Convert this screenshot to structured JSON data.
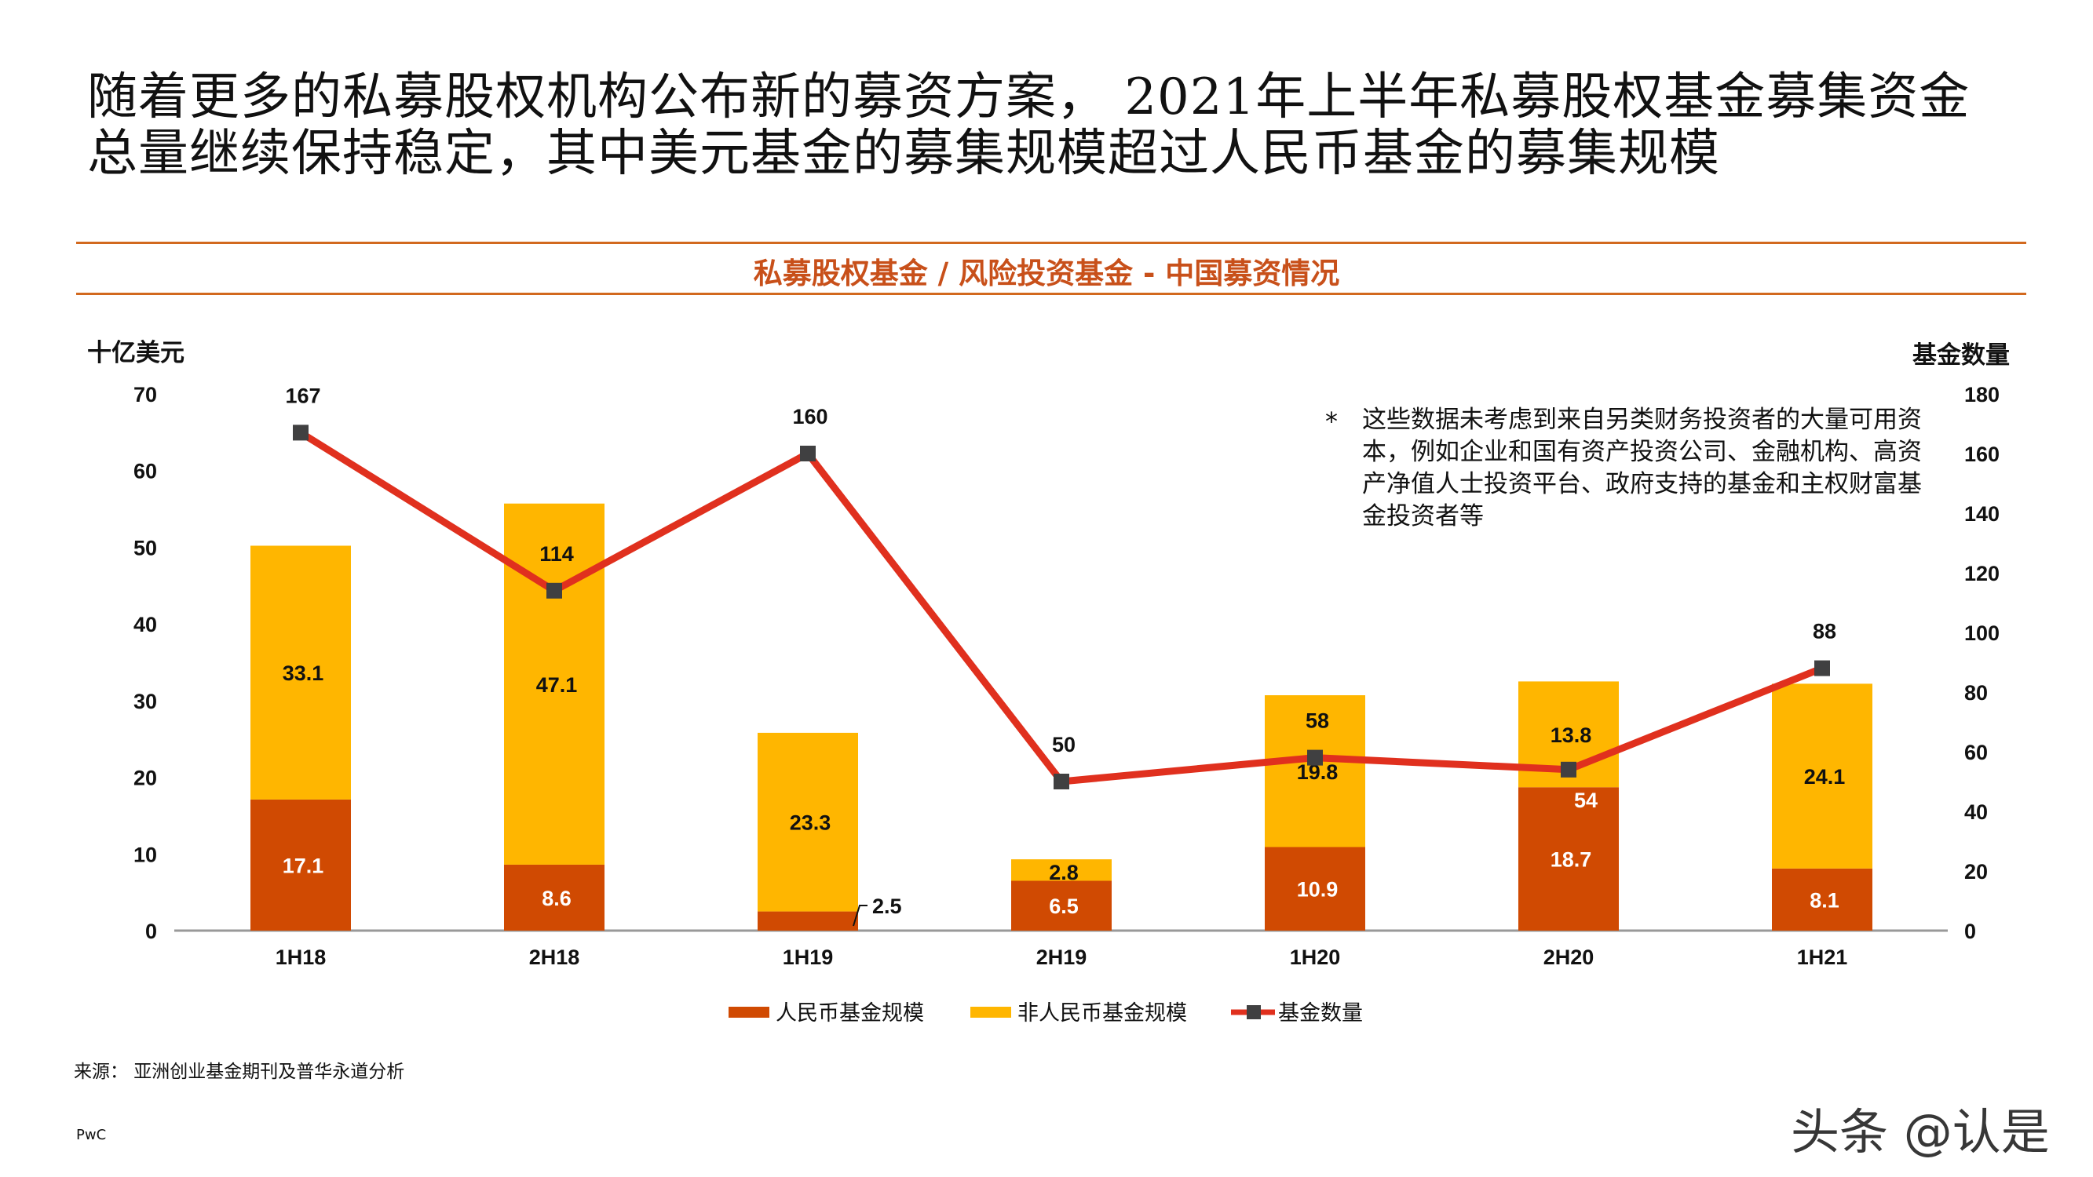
{
  "headline": [
    "随着更多的私募股权机构公布新的募资方案， 2021年上半年私募股权基金募集资金",
    "总量继续保持稳定，其中美元基金的募集规模超过人民币基金的募集规模"
  ],
  "note": {
    "marker": "*",
    "text": "这些数据未考虑到来自另类财务投资者的大量可用资本，例如企业和国有资产投资公司、金融机构、高资产净值人士投资平台、政府支持的基金和主权财富基金投资者等"
  },
  "source": "来源： 亚洲创业基金期刊及普华永道分析",
  "brand": "PwC",
  "watermark": "头条 @认是",
  "colors": {
    "rmb": "#d04a02",
    "non_rmb": "#ffb600",
    "line": "#e0301e",
    "marker": "#404041",
    "accent": "#c8501a"
  },
  "chart_data": {
    "type": "bar",
    "stacked": true,
    "title": "私募股权基金 / 风险投资基金 - 中国募资情况",
    "ylabel": "十亿美元",
    "y2label": "基金数量",
    "ylim": [
      0,
      70
    ],
    "y2lim": [
      0,
      180
    ],
    "yticks": [
      0,
      10,
      20,
      30,
      40,
      50,
      60,
      70
    ],
    "y2ticks": [
      0,
      20,
      40,
      60,
      80,
      100,
      120,
      140,
      160,
      180
    ],
    "categories": [
      "1H18",
      "2H18",
      "1H19",
      "2H19",
      "1H20",
      "2H20",
      "1H21"
    ],
    "series": [
      {
        "name": "人民币基金规模",
        "type": "bar",
        "axis": "left",
        "values": [
          17.1,
          8.6,
          2.5,
          6.5,
          10.9,
          18.7,
          8.1
        ]
      },
      {
        "name": "非人民币基金规模",
        "type": "bar",
        "axis": "left",
        "values": [
          33.1,
          47.1,
          23.3,
          2.8,
          19.8,
          13.8,
          24.1
        ]
      },
      {
        "name": "基金数量",
        "type": "line",
        "axis": "right",
        "values": [
          167,
          114,
          160,
          50,
          58,
          54,
          88
        ]
      }
    ],
    "grid": false,
    "legend": "bottom"
  }
}
